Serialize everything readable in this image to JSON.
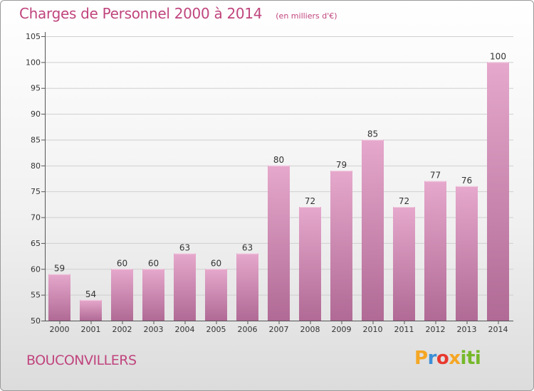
{
  "title": "Charges de Personnel 2000 à 2014",
  "subtitle": "(en milliers d'€)",
  "place": "BOUCONVILLERS",
  "logo": {
    "text": "Proxiti",
    "colors": [
      "#f5a623",
      "#3c8fd6",
      "#e8392f",
      "#76b82a"
    ]
  },
  "colors": {
    "accent": "#c0457e",
    "bar_top": "#e6a8cc",
    "bar_bottom": "#b06a95"
  },
  "chart_data": {
    "type": "bar",
    "categories": [
      "2000",
      "2001",
      "2002",
      "2003",
      "2004",
      "2005",
      "2006",
      "2007",
      "2008",
      "2009",
      "2010",
      "2011",
      "2012",
      "2013",
      "2014"
    ],
    "values": [
      59,
      54,
      60,
      60,
      63,
      60,
      63,
      80,
      72,
      79,
      85,
      72,
      77,
      76,
      100
    ],
    "value_labels": [
      "59",
      "54",
      "60",
      "60",
      "63",
      "60",
      "63",
      "80",
      "72",
      "79",
      "85",
      "72",
      "77",
      "76",
      "100"
    ],
    "ylim": [
      50,
      105
    ],
    "yticks": [
      50,
      55,
      60,
      65,
      70,
      75,
      80,
      85,
      90,
      95,
      100,
      105
    ],
    "ytick_labels": [
      "50",
      "55",
      "60",
      "65",
      "70",
      "75",
      "80",
      "85",
      "90",
      "95",
      "100",
      "105"
    ],
    "grid": true,
    "xlabel": "",
    "ylabel": ""
  }
}
